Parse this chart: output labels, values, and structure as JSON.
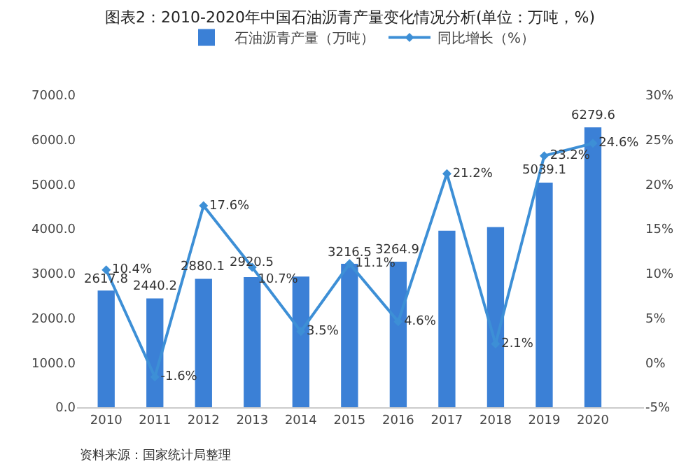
{
  "chart_data": {
    "type": "bar",
    "title": "图表2：2010-2020年中国石油沥青产量变化情况分析(单位：万吨，%)",
    "categories": [
      "2010",
      "2011",
      "2012",
      "2013",
      "2014",
      "2015",
      "2016",
      "2017",
      "2018",
      "2019",
      "2020"
    ],
    "series": [
      {
        "name": "石油沥青产量（万吨）",
        "color": "#3b80d6",
        "values": [
          2617.8,
          2440.2,
          2880.1,
          2920.5,
          2930,
          3216.5,
          3264.9,
          3960,
          4040,
          5039.1,
          6279.6
        ],
        "value_labels": [
          "2617.8",
          "2440.2",
          "2880.1",
          "2920.5",
          null,
          "3216.5",
          "3264.9",
          null,
          null,
          "5039.1",
          "6279.6"
        ]
      },
      {
        "name": "同比增长（%）",
        "type": "line",
        "axis": "y2",
        "color": "#3d8fd6",
        "marker": "diamond",
        "values": [
          10.4,
          -1.6,
          17.6,
          10.7,
          3.5,
          11.1,
          4.6,
          21.2,
          2.1,
          23.2,
          24.6
        ],
        "value_labels": [
          "10.4%",
          "-1.6%",
          "17.6%",
          "10.7%",
          "3.5%",
          "11.1%",
          "4.6%",
          "21.2%",
          "2.1%",
          "23.2%",
          "24.6%"
        ]
      }
    ],
    "ylim": [
      0,
      7000
    ],
    "yticks": [
      {
        "value": 0,
        "label": "0.0"
      },
      {
        "value": 1000,
        "label": "1000.0"
      },
      {
        "value": 2000,
        "label": "2000.0"
      },
      {
        "value": 3000,
        "label": "3000.0"
      },
      {
        "value": 4000,
        "label": "4000.0"
      },
      {
        "value": 5000,
        "label": "5000.0"
      },
      {
        "value": 6000,
        "label": "6000.0"
      },
      {
        "value": 7000,
        "label": "7000.0"
      }
    ],
    "y2lim": [
      -5,
      30
    ],
    "y2ticks": [
      {
        "value": -5,
        "label": "-5%"
      },
      {
        "value": 0,
        "label": "0%"
      },
      {
        "value": 5,
        "label": "5%"
      },
      {
        "value": 10,
        "label": "10%"
      },
      {
        "value": 15,
        "label": "15%"
      },
      {
        "value": 20,
        "label": "20%"
      },
      {
        "value": 25,
        "label": "25%"
      },
      {
        "value": 30,
        "label": "30%"
      }
    ],
    "legend": "top",
    "grid": false,
    "annotations": [
      "资料来源：国家统计局整理"
    ]
  }
}
